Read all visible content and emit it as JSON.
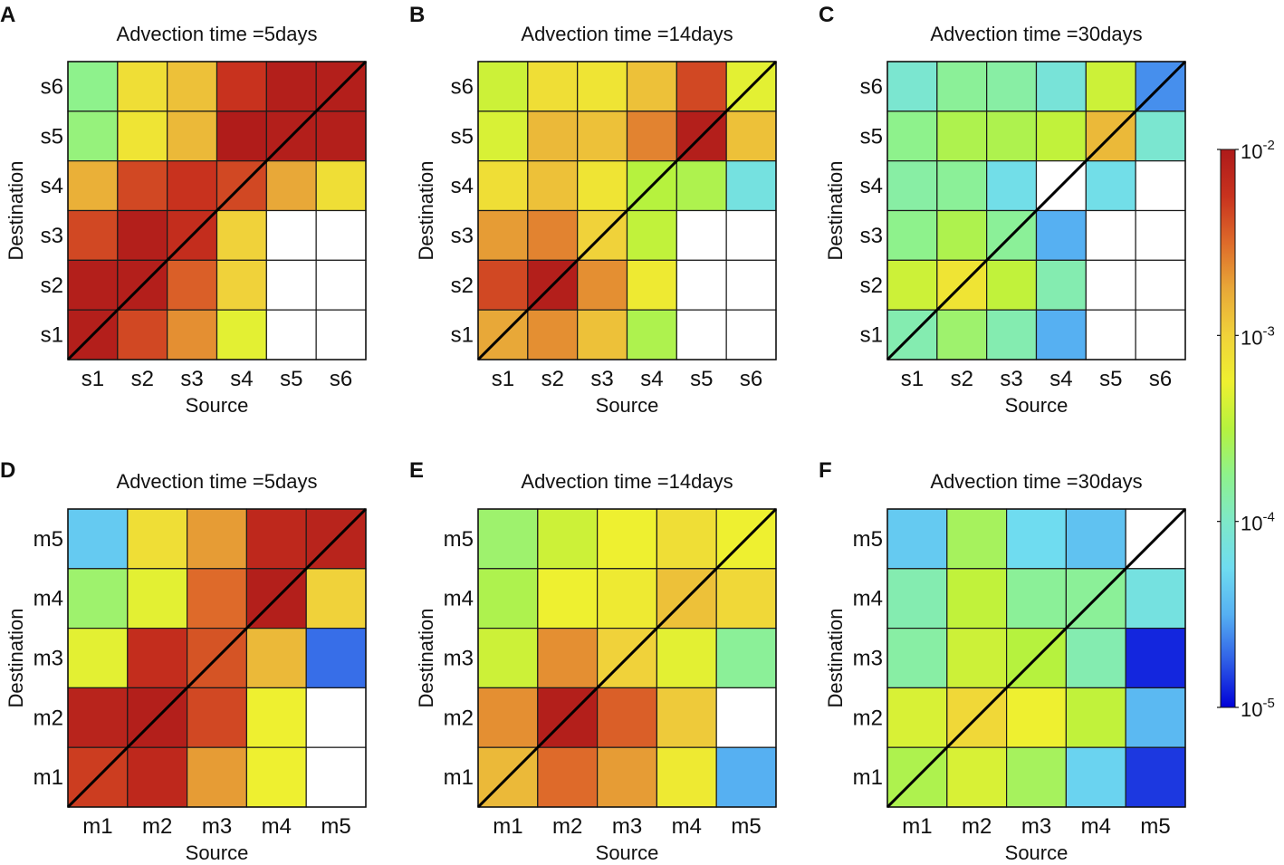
{
  "chart_data": {
    "type": "heatmap",
    "colorbar": {
      "scale": "log",
      "min": 1e-05,
      "max": 0.01,
      "ticks": [
        {
          "value": 0.01,
          "base": "10",
          "exp": "-2"
        },
        {
          "value": 0.001,
          "base": "10",
          "exp": "-3"
        },
        {
          "value": 0.0001,
          "base": "10",
          "exp": "-4"
        },
        {
          "value": 1e-05,
          "base": "10",
          "exp": "-5"
        }
      ],
      "colormap": [
        "#0000d8",
        "#2f5ee6",
        "#56b0f2",
        "#6fdcf0",
        "#7ee8c8",
        "#8ef28c",
        "#b6f23e",
        "#eef030",
        "#f0d23a",
        "#e8a838",
        "#de6a2a",
        "#c8321e",
        "#ae1a1a"
      ],
      "missing_color": "#ffffff"
    },
    "panels": [
      {
        "letter": "A",
        "title": "Advection time =5days",
        "xlabel": "Source",
        "ylabel": "Destination",
        "labels": [
          "s1",
          "s2",
          "s3",
          "s4",
          "s5",
          "s6"
        ],
        "values_by_row_top_to_bottom": [
          [
            -3.75,
            -3.1,
            -2.9,
            -2.25,
            -2.05,
            -2.05
          ],
          [
            -3.7,
            -3.15,
            -2.85,
            -2.02,
            -2.05,
            -2.05
          ],
          [
            -2.8,
            -2.35,
            -2.25,
            -2.35,
            -2.75,
            -3.1
          ],
          [
            -2.35,
            -2.05,
            -2.2,
            -3.0,
            null,
            null
          ],
          [
            -2.05,
            -2.05,
            -2.45,
            -3.0,
            null,
            null
          ],
          [
            -2.05,
            -2.35,
            -2.65,
            -3.3,
            null,
            null
          ]
        ]
      },
      {
        "letter": "B",
        "title": "Advection time =14days",
        "xlabel": "Source",
        "ylabel": "Destination",
        "labels": [
          "s1",
          "s2",
          "s3",
          "s4",
          "s5",
          "s6"
        ],
        "values_by_row_top_to_bottom": [
          [
            -3.4,
            -3.1,
            -3.15,
            -2.9,
            -2.35,
            -3.3
          ],
          [
            -3.35,
            -2.85,
            -2.9,
            -2.6,
            -2.05,
            -2.9
          ],
          [
            -3.1,
            -2.9,
            -3.15,
            -3.5,
            -3.55,
            -4.15
          ],
          [
            -2.7,
            -2.6,
            -3.0,
            -3.45,
            null,
            null
          ],
          [
            -2.35,
            -2.05,
            -2.65,
            -3.2,
            null,
            null
          ],
          [
            -2.75,
            -2.65,
            -2.9,
            -3.55,
            null,
            null
          ]
        ]
      },
      {
        "letter": "C",
        "title": "Advection time =30days",
        "xlabel": "Source",
        "ylabel": "Destination",
        "labels": [
          "s1",
          "s2",
          "s3",
          "s4",
          "s5",
          "s6"
        ],
        "values_by_row_top_to_bottom": [
          [
            -4.05,
            -3.8,
            -3.85,
            -4.1,
            -3.4,
            -4.6
          ],
          [
            -3.75,
            -3.55,
            -3.55,
            -3.45,
            -2.85,
            -4.05
          ],
          [
            -3.85,
            -3.8,
            -4.2,
            null,
            -4.2,
            null
          ],
          [
            -3.75,
            -3.55,
            -3.8,
            -4.5,
            null,
            null
          ],
          [
            -3.4,
            -3.15,
            -3.45,
            -3.9,
            null,
            null
          ],
          [
            -3.9,
            -3.65,
            -3.9,
            -4.5,
            null,
            null
          ]
        ]
      },
      {
        "letter": "D",
        "title": "Advection time =5days",
        "xlabel": "Source",
        "ylabel": "Destination",
        "labels": [
          "m1",
          "m2",
          "m3",
          "m4",
          "m5"
        ],
        "values_by_row_top_to_bottom": [
          [
            -4.35,
            -3.1,
            -2.7,
            -2.15,
            -2.1
          ],
          [
            -3.65,
            -3.3,
            -2.5,
            -2.05,
            -3.0
          ],
          [
            -3.3,
            -2.2,
            -2.4,
            -2.85,
            -4.7
          ],
          [
            -2.1,
            -2.05,
            -2.35,
            -3.25,
            null
          ],
          [
            -2.3,
            -2.15,
            -2.7,
            -3.25,
            null
          ]
        ]
      },
      {
        "letter": "E",
        "title": "Advection time =14days",
        "xlabel": "Source",
        "ylabel": "Destination",
        "labels": [
          "m1",
          "m2",
          "m3",
          "m4",
          "m5"
        ],
        "values_by_row_top_to_bottom": [
          [
            -3.65,
            -3.4,
            -3.25,
            -3.1,
            -3.25
          ],
          [
            -3.55,
            -3.25,
            -3.2,
            -2.9,
            -3.05
          ],
          [
            -3.4,
            -2.65,
            -3.0,
            -3.3,
            -3.8
          ],
          [
            -2.65,
            -2.05,
            -2.45,
            -2.95,
            null
          ],
          [
            -2.85,
            -2.5,
            -2.7,
            -3.2,
            -4.5
          ]
        ]
      },
      {
        "letter": "F",
        "title": "Advection time =30days",
        "xlabel": "Source",
        "ylabel": "Destination",
        "labels": [
          "m1",
          "m2",
          "m3",
          "m4",
          "m5"
        ],
        "values_by_row_top_to_bottom": [
          [
            -4.35,
            -3.6,
            -4.25,
            -4.4,
            null
          ],
          [
            -3.9,
            -3.45,
            -3.8,
            -3.8,
            -4.15
          ],
          [
            -3.85,
            -3.4,
            -3.5,
            -3.9,
            -4.9
          ],
          [
            -3.35,
            -3.05,
            -3.25,
            -3.45,
            -4.45
          ],
          [
            -3.55,
            -3.35,
            -3.6,
            -4.3,
            -4.85
          ]
        ]
      }
    ]
  }
}
